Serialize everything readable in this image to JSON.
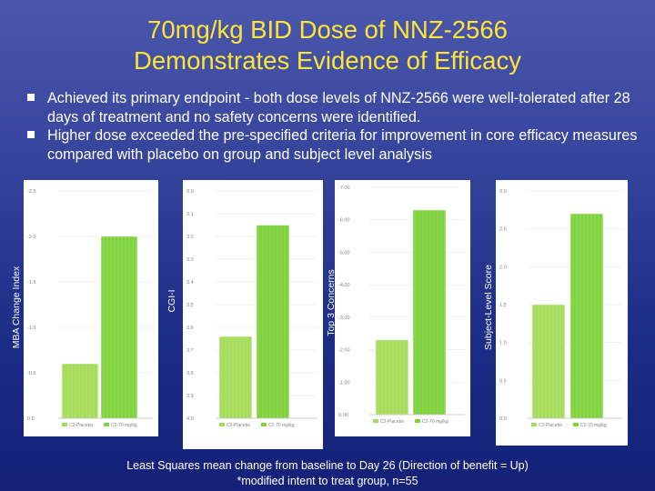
{
  "slide": {
    "title_line1": "70mg/kg BID Dose of NNZ-2566",
    "title_line2": "Demonstrates Evidence of Efficacy",
    "bullets": [
      "Achieved its primary endpoint - both dose levels of NNZ-2566 were well-tolerated after 28 days of treatment and no safety concerns were identified.",
      "Higher dose  exceeded the pre-specified criteria for improvement in core efficacy measures compared with placebo on group and subject level analysis"
    ],
    "footer_line1": "Least Squares mean change from baseline to Day 26 (Direction of benefit = Up)",
    "footer_line2": "*modified intent to treat group, n=55"
  },
  "colors": {
    "title": "#ffe533",
    "placebo_bar": "#a4dc5a",
    "dose_bar": "#7ed23c",
    "grid": "#e6e6e6",
    "tick_text": "#808080"
  },
  "chart_data": [
    {
      "type": "bar",
      "ylabel": "MBA Change Index",
      "categories": [
        "C2-Placebo",
        "C2-70 mg/kg"
      ],
      "values": [
        -0.6,
        -2.0
      ],
      "yticks": [
        "-2.5",
        "-2.0",
        "-1.5",
        "-1.0",
        "-0.5",
        "0.0"
      ],
      "ylim": [
        0,
        -2.5
      ]
    },
    {
      "type": "bar",
      "ylabel": "CGI-I",
      "categories": [
        "C2-Placebo",
        "C2-70 mg/kg"
      ],
      "values": [
        3.64,
        3.15
      ],
      "yticks": [
        "3.0",
        "3.1",
        "3.2",
        "3.3",
        "3.4",
        "3.5",
        "3.6",
        "3.7",
        "3.8",
        "3.9",
        "4.0"
      ],
      "ylim": [
        4.0,
        3.0
      ]
    },
    {
      "type": "bar",
      "ylabel": "Top 3 Concerns",
      "categories": [
        "C2-Placebo",
        "C2-70 mg/kg"
      ],
      "values": [
        -2.3,
        -6.3
      ],
      "yticks": [
        "-7.00",
        "-6.00",
        "-5.00",
        "-4.00",
        "-3.00",
        "-2.00",
        "-1.00",
        "0.00"
      ],
      "ylim": [
        0,
        -7.0
      ]
    },
    {
      "type": "bar",
      "ylabel": "Subject-Level Score",
      "categories": [
        "C2-Placebo",
        "C2-70 mg/kg"
      ],
      "values": [
        1.5,
        2.7
      ],
      "yticks": [
        "3.0",
        "2.5",
        "2.0",
        "1.5",
        "1.0",
        "0.5",
        "0.0"
      ],
      "ylim": [
        0,
        3.0
      ]
    }
  ]
}
